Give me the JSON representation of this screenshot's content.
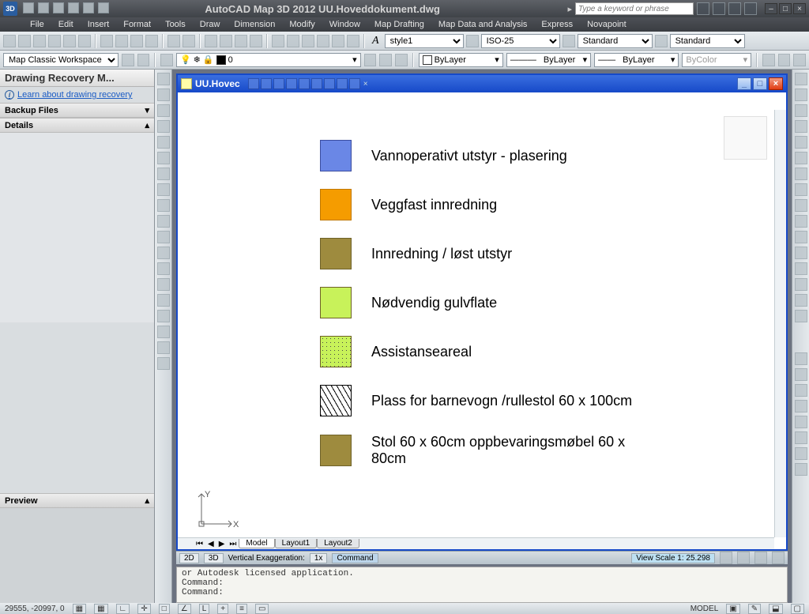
{
  "app": {
    "title": "AutoCAD Map 3D 2012   UU.Hoveddokument.dwg",
    "search_placeholder": "Type a keyword or phrase",
    "logo_text": "3D"
  },
  "menubar": [
    "File",
    "Edit",
    "Insert",
    "Format",
    "Tools",
    "Draw",
    "Dimension",
    "Modify",
    "Window",
    "Map Drafting",
    "Map Data and Analysis",
    "Express",
    "Novapoint"
  ],
  "toolrow1": {
    "style_dd": "style1",
    "iso_dd": "ISO-25",
    "std_dd1": "Standard",
    "std_dd2": "Standard"
  },
  "toolrow2": {
    "workspace": "Map Classic Workspace",
    "layer_state": "0",
    "bylayer1": "ByLayer",
    "bylayer2": "ByLayer",
    "bylayer3": "ByLayer",
    "bycolor": "ByColor"
  },
  "left_panel": {
    "title": "Drawing Recovery M...",
    "link": "Learn about drawing recovery",
    "section1": "Backup Files",
    "section2": "Details",
    "section3": "Preview"
  },
  "doc": {
    "title": "UU.Hovec",
    "tabs": [
      "Model",
      "Layout1",
      "Layout2"
    ]
  },
  "legend": {
    "items": [
      {
        "color": "#6a87e6",
        "border": "#3b4da0",
        "label": "Vannoperativt utstyr - plasering",
        "type": "solid"
      },
      {
        "color": "#f59c00",
        "border": "#c07800",
        "label": "Veggfast innredning",
        "type": "solid"
      },
      {
        "color": "#9e8b3e",
        "border": "#6e6128",
        "label": "Innredning / løst utstyr",
        "type": "solid"
      },
      {
        "color": "#c8f25a",
        "border": "#6e6128",
        "label": "Nødvendig gulvflate",
        "type": "solid"
      },
      {
        "color": "#c8f25a",
        "border": "#6e6128",
        "label": "Assistanseareal",
        "type": "dot"
      },
      {
        "color": "#ffffff",
        "border": "#000000",
        "label": "Plass for barnevogn /rullestol 60 x 100cm",
        "type": "hatch"
      },
      {
        "color": "#9e8b3e",
        "border": "#6e6128",
        "label": "Stol 60 x 60cm oppbevaringsmøbel 60 x 80cm",
        "type": "solid"
      }
    ]
  },
  "bottom": {
    "btn2d": "2D",
    "btn3d": "3D",
    "vx": "Vertical Exaggeration:",
    "vx_val": "1x",
    "cmd_btn": "Command",
    "viewscale": "View Scale 1:",
    "vs_val": "25.298"
  },
  "cmd": {
    "l1": "or Autodesk licensed application.",
    "l2": "Command:",
    "l3": "Command:"
  },
  "status": {
    "coords": "29555, -20997, 0",
    "model": "MODEL"
  }
}
